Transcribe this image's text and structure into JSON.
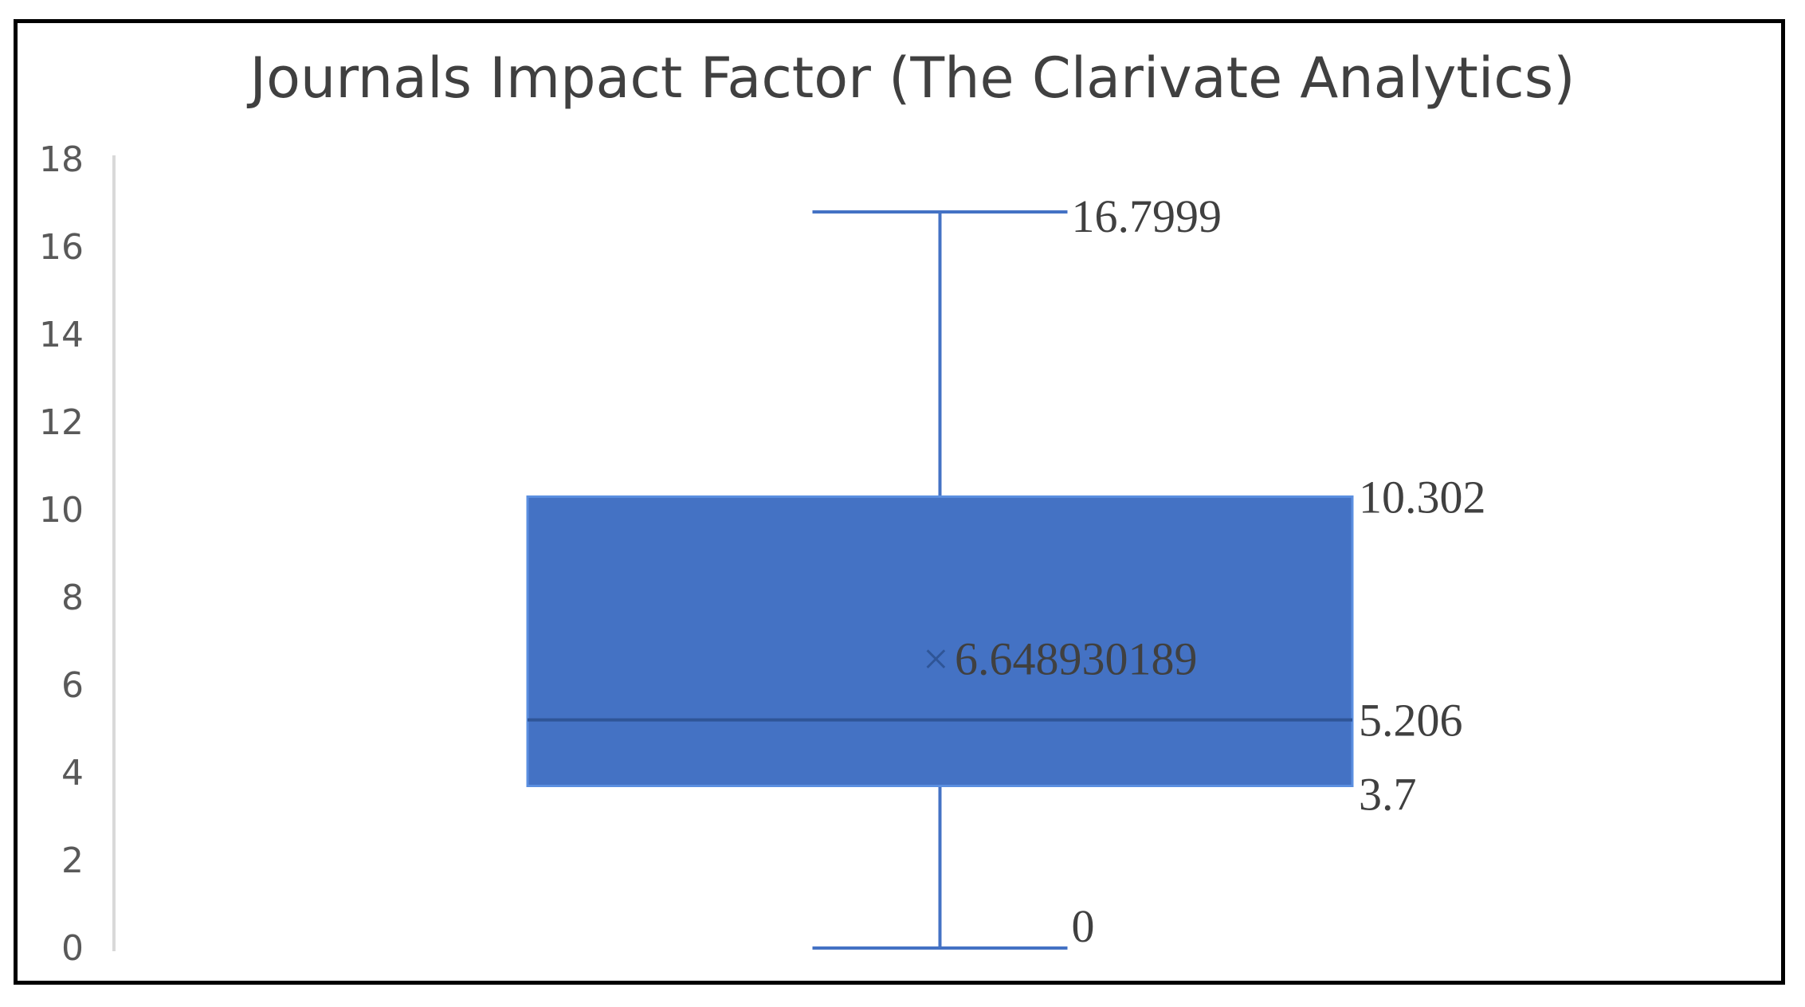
{
  "chart_data": {
    "type": "box",
    "title": "Journals Impact Factor (The Clarivate Analytics)",
    "xlabel": "",
    "ylabel": "",
    "ylim": [
      0,
      18
    ],
    "y_ticks": [
      0,
      2,
      4,
      6,
      8,
      10,
      12,
      14,
      16,
      18
    ],
    "y_tick_labels": [
      "0",
      "2",
      "4",
      "6",
      "8",
      "10",
      "12",
      "14",
      "16",
      "18"
    ],
    "grid": false,
    "legend": "none",
    "colors": {
      "box_fill": "#4472C4",
      "box_stroke": "#2F5597",
      "whisker": "#4472C4"
    },
    "box": {
      "min": 0,
      "q1": 3.7,
      "median": 5.206,
      "q3": 10.302,
      "max": 16.7999,
      "mean": 6.648930189
    },
    "data_labels": {
      "max": "16.7999",
      "q3": "10.302",
      "mean": "6.648930189",
      "median": "5.206",
      "q1": "3.7",
      "min": "0"
    },
    "mean_marker": "×"
  }
}
